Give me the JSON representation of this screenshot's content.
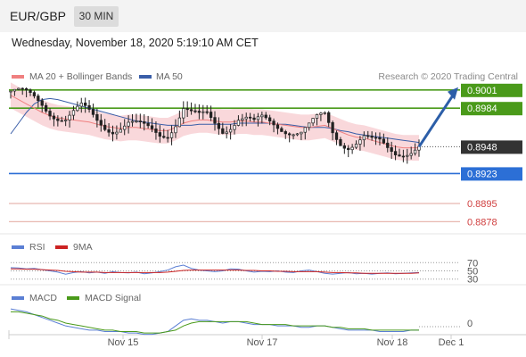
{
  "header": {
    "symbol": "EUR/GBP",
    "timeframe": "30 MIN",
    "datetime": "Wednesday, November 18, 2020 5:19:10 AM CET",
    "copyright": "Research © 2020 Trading Central"
  },
  "legend": {
    "main": [
      {
        "label": "MA 20 + Bollinger Bands",
        "color": "#f08080"
      },
      {
        "label": "MA 50",
        "color": "#3a5ea8"
      }
    ],
    "rsi": [
      {
        "label": "RSI",
        "color": "#5b7fd4"
      },
      {
        "label": "9MA",
        "color": "#cc2222"
      }
    ],
    "macd": [
      {
        "label": "MACD",
        "color": "#5b7fd4"
      },
      {
        "label": "MACD Signal",
        "color": "#4a9a1a"
      }
    ]
  },
  "colors": {
    "resistance": "#4a9a1a",
    "support": "#2c6fd6",
    "last_price": "#333333",
    "lower_level": "#d04040",
    "candle": "#222222",
    "band": "#f7c8cc"
  },
  "chart_data": {
    "type": "candlestick",
    "main": {
      "ylim": [
        0.887,
        0.9005
      ],
      "price_levels": [
        {
          "value": "0.9001",
          "role": "resistance"
        },
        {
          "value": "0.8984",
          "role": "resistance"
        },
        {
          "value": "0.8948",
          "role": "last"
        },
        {
          "value": "0.8923",
          "role": "support"
        },
        {
          "value": "0.8895",
          "role": "lower"
        },
        {
          "value": "0.8878",
          "role": "lower"
        }
      ],
      "close_path": [
        0.9,
        0.8998,
        0.8995,
        0.8992,
        0.8988,
        0.8982,
        0.8978,
        0.8975,
        0.8979,
        0.8983,
        0.8978,
        0.8972,
        0.8968,
        0.8966,
        0.8968,
        0.897,
        0.8967,
        0.8964,
        0.8962,
        0.896,
        0.8962,
        0.8972,
        0.8985,
        0.8978,
        0.8974,
        0.8976,
        0.897,
        0.8965,
        0.897,
        0.8976,
        0.8974,
        0.8968,
        0.8972,
        0.897,
        0.8968,
        0.8966,
        0.8964,
        0.8962,
        0.8966,
        0.8972,
        0.8976,
        0.8962,
        0.8954,
        0.8951,
        0.8953,
        0.8956,
        0.8951,
        0.895,
        0.8946,
        0.8944,
        0.8945,
        0.8946,
        0.8948
      ],
      "ma20": [
        0.8996,
        0.8992,
        0.8988,
        0.8984,
        0.898,
        0.8977,
        0.8975,
        0.8974,
        0.8973,
        0.8972,
        0.8971,
        0.8969,
        0.8967,
        0.8966,
        0.8965,
        0.8966,
        0.8966,
        0.8965,
        0.8964,
        0.8963,
        0.8963,
        0.8966,
        0.897,
        0.8972,
        0.8973,
        0.8973,
        0.8972,
        0.8971,
        0.8971,
        0.8972,
        0.8972,
        0.8971,
        0.8971,
        0.897,
        0.8969,
        0.8968,
        0.8967,
        0.8966,
        0.8966,
        0.8967,
        0.8968,
        0.8965,
        0.8962,
        0.8959,
        0.8957,
        0.8956,
        0.8954,
        0.8952,
        0.895,
        0.8948,
        0.8947,
        0.8947,
        0.8947
      ],
      "ma50": [
        0.896,
        0.897,
        0.898,
        0.8988,
        0.8992,
        0.8993,
        0.8992,
        0.899,
        0.8988,
        0.8986,
        0.8984,
        0.8982,
        0.898,
        0.8978,
        0.8976,
        0.8974,
        0.8972,
        0.8971,
        0.897,
        0.8969,
        0.8968,
        0.8968,
        0.8968,
        0.8968,
        0.8969,
        0.8969,
        0.8969,
        0.8969,
        0.8969,
        0.897,
        0.897,
        0.897,
        0.897,
        0.897,
        0.8969,
        0.8969,
        0.8968,
        0.8967,
        0.8966,
        0.8966,
        0.8966,
        0.8965,
        0.8963,
        0.8962,
        0.896,
        0.8959,
        0.8958,
        0.8957,
        0.8956,
        0.8955,
        0.8954,
        0.8953,
        0.8952
      ],
      "band_width": 0.0012,
      "forecast": {
        "from": 0.8948,
        "to": 0.9001
      }
    },
    "rsi": {
      "ylim": [
        25,
        75
      ],
      "levels": [
        "70",
        "50",
        "30"
      ],
      "rsi": [
        58,
        57,
        55,
        56,
        53,
        50,
        47,
        42,
        46,
        48,
        45,
        47,
        44,
        48,
        46,
        45,
        47,
        43,
        45,
        48,
        52,
        60,
        64,
        56,
        52,
        50,
        48,
        50,
        55,
        54,
        50,
        47,
        49,
        48,
        50,
        47,
        46,
        50,
        52,
        48,
        44,
        42,
        44,
        46,
        43,
        44,
        42,
        44,
        45,
        43,
        44,
        45,
        46
      ],
      "ma9": [
        55,
        55,
        54,
        54,
        53,
        52,
        51,
        49,
        48,
        47,
        47,
        47,
        46,
        46,
        46,
        46,
        46,
        46,
        46,
        46,
        47,
        49,
        51,
        52,
        52,
        52,
        52,
        52,
        52,
        52,
        51,
        51,
        50,
        50,
        49,
        49,
        48,
        48,
        48,
        48,
        47,
        46,
        46,
        45,
        45,
        44,
        44,
        44,
        44,
        44,
        44,
        44,
        45
      ]
    },
    "macd": {
      "ylim": [
        -0.0012,
        0.0012
      ],
      "levels": [
        "0"
      ],
      "macd": [
        0.001,
        0.0009,
        0.0008,
        0.0006,
        0.0004,
        0.0002,
        0.0,
        -0.0002,
        -0.0003,
        -0.0004,
        -0.0005,
        -0.0005,
        -0.0006,
        -0.0006,
        -0.0006,
        -0.0007,
        -0.0007,
        -0.0008,
        -0.0008,
        -0.0007,
        -0.0006,
        -0.0002,
        0.0002,
        0.0003,
        0.0002,
        0.0002,
        0.0001,
        0.0,
        0.0001,
        0.0001,
        0.0,
        -0.0001,
        -0.0001,
        -0.0001,
        -0.0002,
        -0.0002,
        -0.0002,
        -0.0003,
        -0.0003,
        -0.0002,
        -0.0002,
        -0.0003,
        -0.0004,
        -0.0005,
        -0.0005,
        -0.0005,
        -0.0005,
        -0.0006,
        -0.0006,
        -0.0006,
        -0.0006,
        -0.0005,
        -0.0005
      ],
      "signal": [
        0.0008,
        0.0008,
        0.0007,
        0.0006,
        0.0005,
        0.0003,
        0.0002,
        0.0,
        -0.0001,
        -0.0002,
        -0.0003,
        -0.0004,
        -0.0005,
        -0.0005,
        -0.0006,
        -0.0006,
        -0.0006,
        -0.0007,
        -0.0007,
        -0.0007,
        -0.0006,
        -0.0005,
        -0.0002,
        0.0,
        0.0001,
        0.0001,
        0.0001,
        0.0001,
        0.0001,
        0.0001,
        0.0001,
        0.0,
        -0.0001,
        -0.0001,
        -0.0001,
        -0.0001,
        -0.0002,
        -0.0002,
        -0.0002,
        -0.0002,
        -0.0002,
        -0.0003,
        -0.0003,
        -0.0004,
        -0.0004,
        -0.0004,
        -0.0005,
        -0.0005,
        -0.0005,
        -0.0005,
        -0.0005,
        -0.0005,
        -0.0005
      ]
    },
    "x_ticks": [
      "Nov 15",
      "Nov 17",
      "Nov 18",
      "Dec 1"
    ]
  }
}
